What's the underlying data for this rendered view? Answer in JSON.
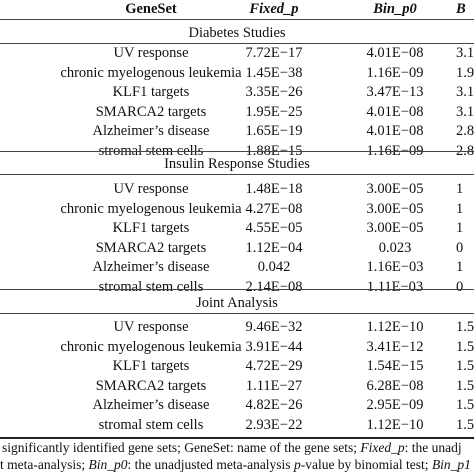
{
  "table": {
    "columns": [
      "GeneSet",
      "Fixed_p",
      "Bin_p0",
      "B"
    ],
    "sections": [
      {
        "title": "Diabetes Studies",
        "rows": [
          {
            "gene": "UV response",
            "fixed_p": "7.72E−17",
            "bin_p0": "4.01E−08",
            "last": "3.1"
          },
          {
            "gene": "chronic myelogenous leukemia",
            "fixed_p": "1.45E−38",
            "bin_p0": "1.16E−09",
            "last": "1.9"
          },
          {
            "gene": "KLF1 targets",
            "fixed_p": "3.35E−26",
            "bin_p0": "3.47E−13",
            "last": "3.1"
          },
          {
            "gene": "SMARCA2 targets",
            "fixed_p": "1.95E−25",
            "bin_p0": "4.01E−08",
            "last": "3.1"
          },
          {
            "gene": "Alzheimer’s disease",
            "fixed_p": "1.65E−19",
            "bin_p0": "4.01E−08",
            "last": "2.8"
          },
          {
            "gene": "stromal stem cells",
            "fixed_p": "1.88E−15",
            "bin_p0": "1.16E−09",
            "last": "2.8"
          }
        ]
      },
      {
        "title": "Insulin Response Studies",
        "rows": [
          {
            "gene": "UV response",
            "fixed_p": "1.48E−18",
            "bin_p0": "3.00E−05",
            "last": "1"
          },
          {
            "gene": "chronic myelogenous leukemia",
            "fixed_p": "4.27E−08",
            "bin_p0": "3.00E−05",
            "last": "1"
          },
          {
            "gene": "KLF1 targets",
            "fixed_p": "4.55E−05",
            "bin_p0": "3.00E−05",
            "last": "1"
          },
          {
            "gene": "SMARCA2 targets",
            "fixed_p": "1.12E−04",
            "bin_p0": "0.023",
            "last": "0"
          },
          {
            "gene": "Alzheimer’s disease",
            "fixed_p": "0.042",
            "bin_p0": "1.16E−03",
            "last": "1"
          },
          {
            "gene": "stromal stem cells",
            "fixed_p": "2.14E−08",
            "bin_p0": "1.11E−03",
            "last": "0"
          }
        ]
      },
      {
        "title": "Joint Analysis",
        "rows": [
          {
            "gene": "UV response",
            "fixed_p": "9.46E−32",
            "bin_p0": "1.12E−10",
            "last": "1.5"
          },
          {
            "gene": "chronic myelogenous leukemia",
            "fixed_p": "3.91E−44",
            "bin_p0": "3.41E−12",
            "last": "1.5"
          },
          {
            "gene": "KLF1 targets",
            "fixed_p": "4.72E−29",
            "bin_p0": "1.54E−15",
            "last": "1.5"
          },
          {
            "gene": "SMARCA2 targets",
            "fixed_p": "1.11E−27",
            "bin_p0": "6.28E−08",
            "last": "1.5"
          },
          {
            "gene": "Alzheimer’s disease",
            "fixed_p": "4.82E−26",
            "bin_p0": "2.95E−09",
            "last": "1.5"
          },
          {
            "gene": "stromal stem cells",
            "fixed_p": "2.93E−22",
            "bin_p0": "1.12E−10",
            "last": "1.5"
          }
        ]
      }
    ]
  },
  "footnote": {
    "line1": [
      {
        "t": "significantly identified gene sets; GeneSet: name of the gene sets; ",
        "i": false
      },
      {
        "t": "Fixed_p",
        "i": true
      },
      {
        "t": ": the unadj",
        "i": false
      }
    ],
    "line2": [
      {
        "t": "t meta-analysis; ",
        "i": false
      },
      {
        "t": "Bin_p0",
        "i": true
      },
      {
        "t": ": the unadjusted meta-analysis ",
        "i": false
      },
      {
        "t": "p",
        "i": true
      },
      {
        "t": "-value by binomial test; ",
        "i": false
      },
      {
        "t": "Bin_p1",
        "i": true
      }
    ],
    "line3": [
      {
        "t": "-value by binomial test.",
        "i": false
      }
    ],
    "line3_prefix_italic": "p"
  }
}
